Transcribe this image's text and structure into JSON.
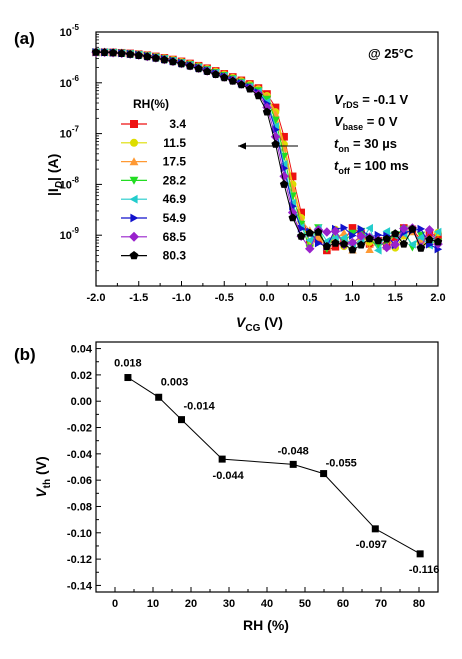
{
  "chart_data": [
    {
      "type": "line",
      "panel_label": "(a)",
      "xlabel_main": "V",
      "xlabel_sub": "CG",
      "xlabel_unit": " (V)",
      "ylabel": "|I_D| (A)",
      "ylabel_main": "|I",
      "ylabel_sub": "D",
      "ylabel_tail": "| (A)",
      "xlim": [
        -2.0,
        2.0
      ],
      "ylim_exponent": [
        -10,
        -5
      ],
      "y_scale": "log",
      "xticks": [
        "-2.0",
        "-1.5",
        "-1.0",
        "-0.5",
        "0.0",
        "0.5",
        "1.0",
        "1.5",
        "2.0"
      ],
      "yticks": [
        {
          "exp": -5,
          "label": "-5"
        },
        {
          "exp": -6,
          "label": "-6"
        },
        {
          "exp": -7,
          "label": "-7"
        },
        {
          "exp": -8,
          "label": "-8"
        },
        {
          "exp": -9,
          "label": "-9"
        }
      ],
      "ytick_base": "10",
      "temperature": "@ 25°C",
      "conditions": [
        {
          "main": "V",
          "sub": "rDS",
          "value": " = -0.1 V"
        },
        {
          "main": "V",
          "sub": "base",
          "value": " = 0 V"
        },
        {
          "main": "t",
          "sub": "on",
          "value": " = 30 µs"
        },
        {
          "main": "t",
          "sub": "off",
          "value": " = 100 ms"
        }
      ],
      "legend_title": "RH(%)",
      "legend_placement": "left",
      "arrow_direction": "left",
      "series": [
        {
          "name": "3.4",
          "color": "#ee1111",
          "marker": "square",
          "shift": 0.07
        },
        {
          "name": "11.5",
          "color": "#dddd00",
          "marker": "circle",
          "shift": 0.05
        },
        {
          "name": "17.5",
          "color": "#ff9933",
          "marker": "triangle-up",
          "shift": 0.04
        },
        {
          "name": "28.2",
          "color": "#22dd22",
          "marker": "triangle-down",
          "shift": 0.02
        },
        {
          "name": "46.9",
          "color": "#22cccc",
          "marker": "triangle-left",
          "shift": 0.0
        },
        {
          "name": "54.9",
          "color": "#1111cc",
          "marker": "triangle-right",
          "shift": -0.01
        },
        {
          "name": "68.5",
          "color": "#9922cc",
          "marker": "diamond",
          "shift": -0.03
        },
        {
          "name": "80.3",
          "color": "#000000",
          "marker": "pentagon",
          "shift": -0.05
        }
      ]
    },
    {
      "type": "line",
      "panel_label": "(b)",
      "xlabel": "RH (%)",
      "ylabel_main": "V",
      "ylabel_sub": "th",
      "ylabel_unit": " (V)",
      "xlim": [
        -5,
        85
      ],
      "ylim": [
        -0.145,
        0.045
      ],
      "xticks": [
        0,
        10,
        20,
        30,
        40,
        50,
        60,
        70,
        80
      ],
      "yticks": [
        0.04,
        0.02,
        0.0,
        -0.02,
        -0.04,
        -0.06,
        -0.08,
        -0.1,
        -0.12,
        -0.14
      ],
      "ytick_labels": [
        "0.04",
        "0.02",
        "0.00",
        "-0.02",
        "-0.04",
        "-0.06",
        "-0.08",
        "-0.10",
        "-0.12",
        "-0.14"
      ],
      "x": [
        3.4,
        11.5,
        17.5,
        28.2,
        46.9,
        54.9,
        68.5,
        80.3
      ],
      "y": [
        0.018,
        0.003,
        -0.014,
        -0.044,
        -0.048,
        -0.055,
        -0.097,
        -0.116
      ],
      "data_labels": [
        "0.018",
        "0.003",
        "-0.014",
        "-0.044",
        "-0.048",
        "-0.055",
        "-0.097",
        "-0.116"
      ],
      "marker": "square",
      "color": "#000000"
    }
  ]
}
